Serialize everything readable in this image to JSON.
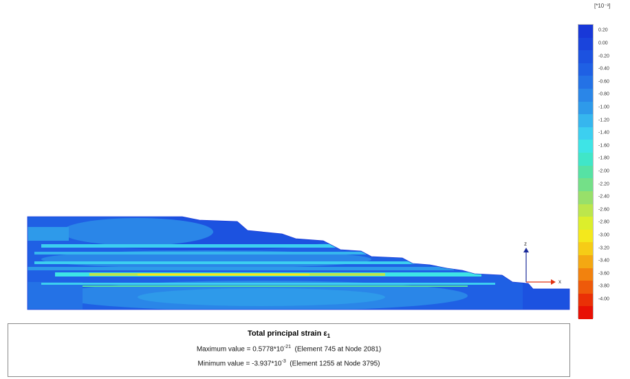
{
  "plot": {
    "axis_z_label": "z",
    "axis_x_label": "x"
  },
  "legend": {
    "unit_label": "[*10⁻³]",
    "ticks": [
      "0.20",
      "0.00",
      "-0.20",
      "-0.40",
      "-0.60",
      "-0.80",
      "-1.00",
      "-1.20",
      "-1.40",
      "-1.60",
      "-1.80",
      "-2.00",
      "-2.20",
      "-2.40",
      "-2.60",
      "-2.80",
      "-3.00",
      "-3.20",
      "-3.40",
      "-3.60",
      "-3.80",
      "-4.00"
    ],
    "colors": [
      "#1838d8",
      "#1a44dc",
      "#1c52e0",
      "#1f60e4",
      "#2472e6",
      "#2a86e8",
      "#2e9aea",
      "#36b6ee",
      "#3ccff0",
      "#3ee4e6",
      "#40e6c8",
      "#56e2a4",
      "#74e088",
      "#98e06a",
      "#bce64c",
      "#dcee2c",
      "#f4e81c",
      "#f6cc16",
      "#f4a812",
      "#f2820e",
      "#ee5a0a",
      "#ea3006",
      "#e81004"
    ]
  },
  "info": {
    "title": "Total principal strain ε",
    "title_sub": "1",
    "max_prefix": "Maximum value = 0.5778*10",
    "max_exp": "-21",
    "max_suffix": "  (Element 745 at Node 2081)",
    "min_prefix": "Minimum value = -3.937*10",
    "min_exp": "-3",
    "min_suffix": "  (Element 1255 at Node 3795)"
  }
}
